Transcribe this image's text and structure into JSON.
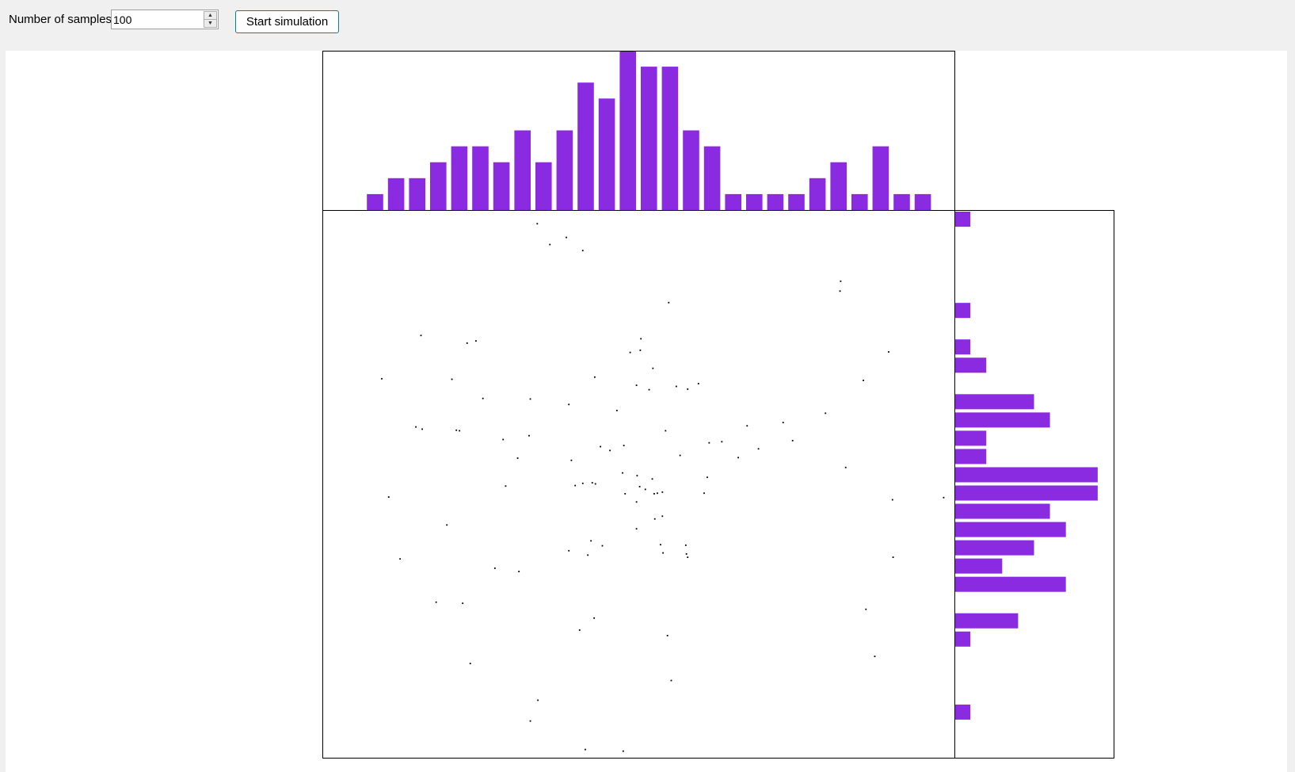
{
  "controls": {
    "samples_label": "Number of samples",
    "samples_value": "100",
    "spin_up_icon": "arrow-up-icon",
    "spin_down_icon": "arrow-down-icon",
    "start_label": "Start simulation"
  },
  "colors": {
    "bar": "#8a2be2",
    "frame": "#000000",
    "point": "#000000"
  },
  "chart_data": [
    {
      "type": "bar",
      "role": "x-histogram",
      "orientation": "vertical",
      "bins": 30,
      "xlim": [
        0,
        30
      ],
      "ylim": [
        0,
        10
      ],
      "values": [
        0,
        0,
        1,
        2,
        2,
        3,
        4,
        4,
        3,
        5,
        3,
        5,
        8,
        7,
        10,
        9,
        9,
        5,
        4,
        1,
        1,
        1,
        1,
        2,
        3,
        1,
        4,
        1,
        1,
        0
      ]
    },
    {
      "type": "bar",
      "role": "y-histogram",
      "orientation": "horizontal",
      "bins": 30,
      "ylim": [
        0,
        30
      ],
      "xlim": [
        0,
        10
      ],
      "values": [
        1,
        0,
        0,
        0,
        0,
        1,
        0,
        1,
        2,
        0,
        5,
        6,
        2,
        2,
        9,
        9,
        6,
        7,
        5,
        3,
        7,
        0,
        4,
        1,
        0,
        0,
        0,
        1,
        0,
        0
      ]
    },
    {
      "type": "scatter",
      "role": "samples",
      "xlim": [
        0,
        1
      ],
      "ylim": [
        0,
        1
      ],
      "points": [
        [
          0.34,
          0.975
        ],
        [
          0.386,
          0.95
        ],
        [
          0.36,
          0.937
        ],
        [
          0.412,
          0.926
        ],
        [
          0.82,
          0.87
        ],
        [
          0.819,
          0.852
        ],
        [
          0.548,
          0.831
        ],
        [
          0.156,
          0.771
        ],
        [
          0.243,
          0.761
        ],
        [
          0.229,
          0.757
        ],
        [
          0.504,
          0.765
        ],
        [
          0.503,
          0.744
        ],
        [
          0.487,
          0.74
        ],
        [
          0.896,
          0.741
        ],
        [
          0.523,
          0.711
        ],
        [
          0.431,
          0.695
        ],
        [
          0.094,
          0.692
        ],
        [
          0.205,
          0.691
        ],
        [
          0.856,
          0.689
        ],
        [
          0.497,
          0.68
        ],
        [
          0.56,
          0.678
        ],
        [
          0.595,
          0.683
        ],
        [
          0.578,
          0.673
        ],
        [
          0.254,
          0.656
        ],
        [
          0.329,
          0.655
        ],
        [
          0.39,
          0.645
        ],
        [
          0.466,
          0.634
        ],
        [
          0.796,
          0.629
        ],
        [
          0.729,
          0.612
        ],
        [
          0.672,
          0.606
        ],
        [
          0.148,
          0.604
        ],
        [
          0.158,
          0.6
        ],
        [
          0.212,
          0.598
        ],
        [
          0.217,
          0.597
        ],
        [
          0.543,
          0.597
        ],
        [
          0.327,
          0.588
        ],
        [
          0.744,
          0.579
        ],
        [
          0.632,
          0.577
        ],
        [
          0.477,
          0.57
        ],
        [
          0.44,
          0.568
        ],
        [
          0.455,
          0.561
        ],
        [
          0.69,
          0.564
        ],
        [
          0.566,
          0.552
        ],
        [
          0.309,
          0.547
        ],
        [
          0.394,
          0.543
        ],
        [
          0.658,
          0.548
        ],
        [
          0.828,
          0.53
        ],
        [
          0.475,
          0.52
        ],
        [
          0.498,
          0.515
        ],
        [
          0.522,
          0.509
        ],
        [
          0.609,
          0.512
        ],
        [
          0.432,
          0.5
        ],
        [
          0.4,
          0.497
        ],
        [
          0.412,
          0.501
        ],
        [
          0.427,
          0.502
        ],
        [
          0.502,
          0.495
        ],
        [
          0.511,
          0.49
        ],
        [
          0.29,
          0.496
        ],
        [
          0.105,
          0.476
        ],
        [
          0.525,
          0.482
        ],
        [
          0.53,
          0.483
        ],
        [
          0.538,
          0.485
        ],
        [
          0.479,
          0.482
        ],
        [
          0.604,
          0.483
        ],
        [
          0.902,
          0.471
        ],
        [
          0.983,
          0.475
        ],
        [
          0.497,
          0.467
        ],
        [
          0.197,
          0.425
        ],
        [
          0.526,
          0.436
        ],
        [
          0.538,
          0.441
        ],
        [
          0.497,
          0.418
        ],
        [
          0.425,
          0.396
        ],
        [
          0.443,
          0.387
        ],
        [
          0.535,
          0.389
        ],
        [
          0.575,
          0.388
        ],
        [
          0.39,
          0.378
        ],
        [
          0.42,
          0.37
        ],
        [
          0.539,
          0.374
        ],
        [
          0.576,
          0.372
        ],
        [
          0.578,
          0.366
        ],
        [
          0.903,
          0.366
        ],
        [
          0.123,
          0.363
        ],
        [
          0.273,
          0.346
        ],
        [
          0.311,
          0.34
        ],
        [
          0.18,
          0.284
        ],
        [
          0.222,
          0.282
        ],
        [
          0.86,
          0.271
        ],
        [
          0.43,
          0.255
        ],
        [
          0.407,
          0.233
        ],
        [
          0.546,
          0.223
        ],
        [
          0.234,
          0.172
        ],
        [
          0.874,
          0.185
        ],
        [
          0.552,
          0.141
        ],
        [
          0.341,
          0.105
        ],
        [
          0.329,
          0.067
        ],
        [
          0.416,
          0.015
        ],
        [
          0.476,
          0.012
        ],
        [
          0.517,
          0.672
        ],
        [
          0.286,
          0.581
        ],
        [
          0.612,
          0.575
        ]
      ]
    }
  ]
}
